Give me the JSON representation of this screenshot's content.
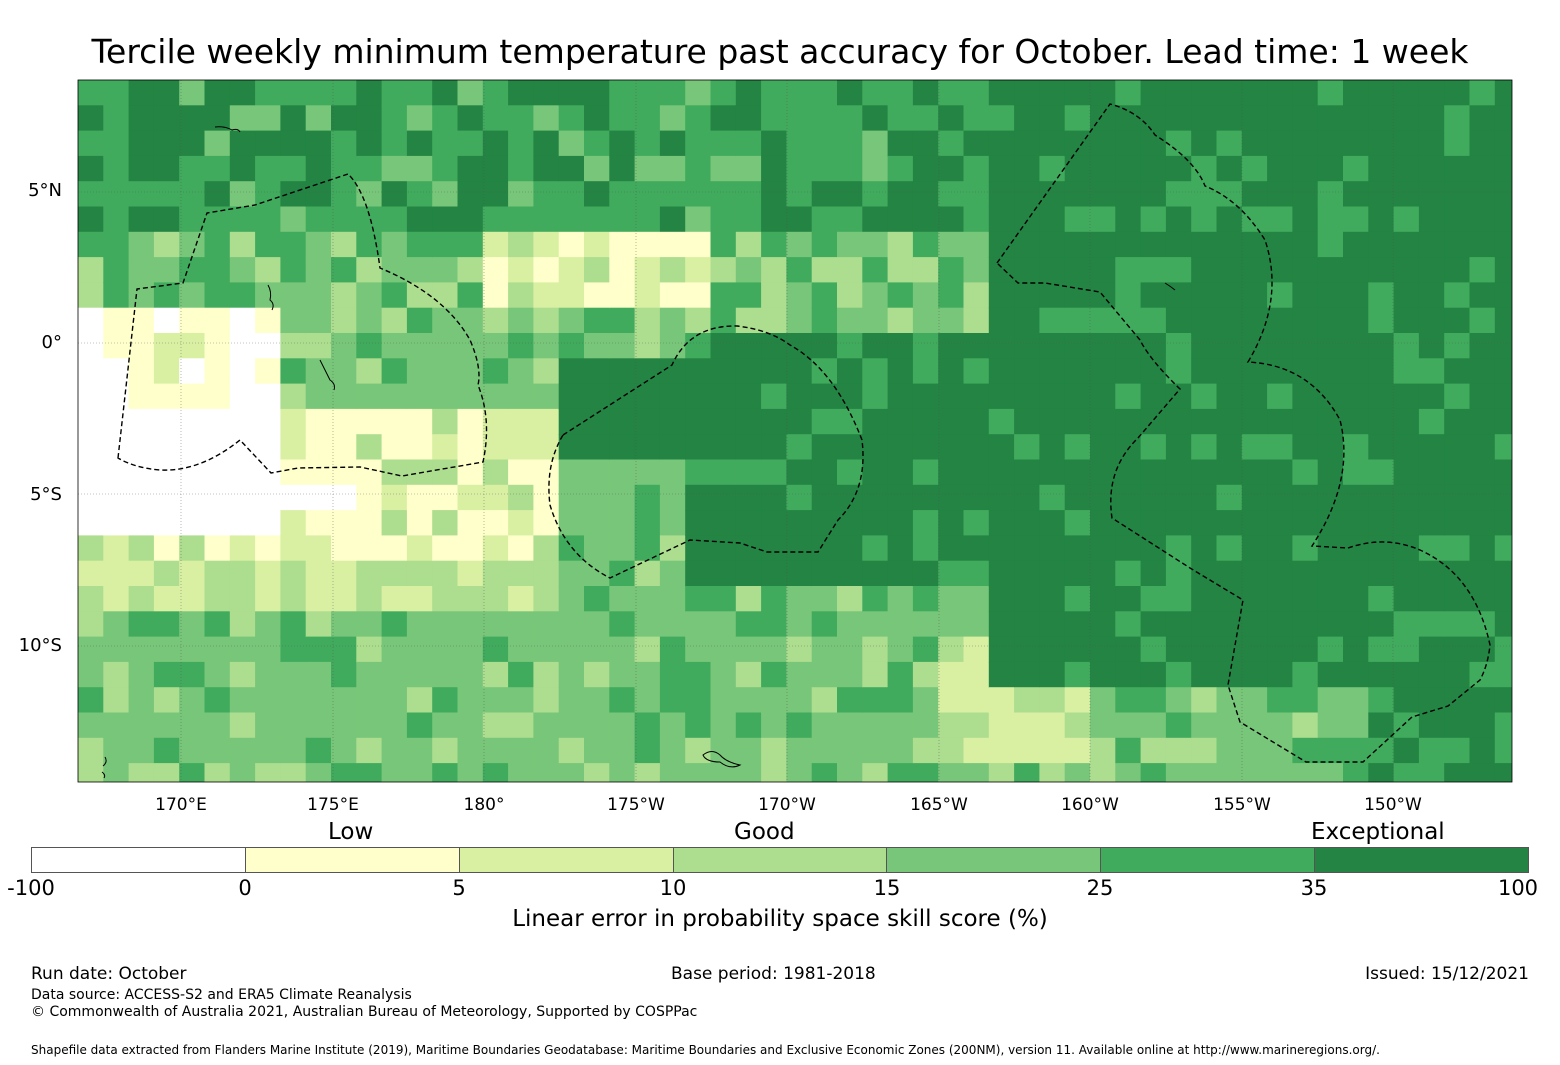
{
  "title": "Tercile weekly minimum temperature past accuracy for October. Lead time: 1 week",
  "map": {
    "lat_labels": [
      "5°N",
      "0°",
      "5°S",
      "10°S"
    ],
    "lon_labels": [
      "170°E",
      "175°E",
      "180°",
      "175°W",
      "170°W",
      "165°W",
      "160°W",
      "155°W",
      "150°W"
    ],
    "eez_boundary_style": "dashed"
  },
  "legend": {
    "categories": [
      "Low",
      "Good",
      "Exceptional"
    ],
    "ticks": [
      "-100",
      "0",
      "5",
      "10",
      "15",
      "25",
      "35",
      "100"
    ],
    "colors": [
      "#ffffff",
      "#ffffcc",
      "#d9f0a3",
      "#addd8e",
      "#78c679",
      "#41ab5d",
      "#238443"
    ],
    "title": "Linear error in probability space skill score (%)"
  },
  "footer": {
    "run_date": "Run date: October",
    "base_period": "Base period: 1981-2018",
    "issued": "Issued: 15/12/2021",
    "data_source": "Data source: ACCESS-S2 and ERA5 Climate Reanalysis",
    "copyright": "© Commonwealth of Australia 2021, Australian Bureau of Meteorology, Supported by COSPPac",
    "shapefile": "Shapefile data extracted from Flanders Marine Institute (2019), Maritime Boundaries Geodatabase: Maritime Boundaries and Exclusive Economic Zones (200NM), version 11. Available online at http://www.marineregions.org/."
  }
}
